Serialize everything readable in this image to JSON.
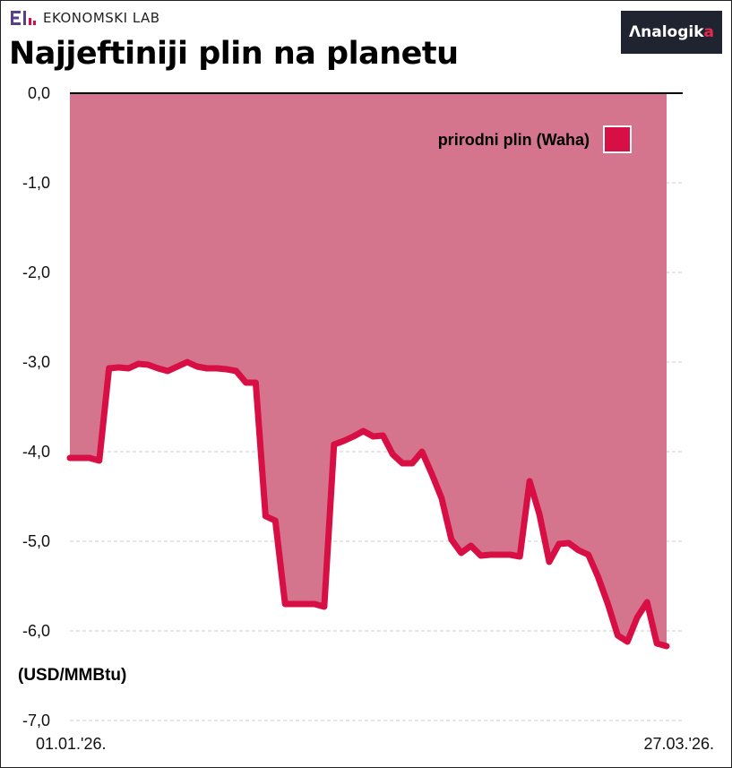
{
  "brand": {
    "name": "EKONOMSKI LAB"
  },
  "logo": {
    "prefix": "Ʌ",
    "main": "nalogik",
    "accent_letter": "a"
  },
  "title": "Najjeftiniji plin na planetu",
  "colors": {
    "line": "#d80f45",
    "area": "#d4748d",
    "gridline": "#cccccc",
    "legend_swatch": "#d80f45"
  },
  "chart_data": {
    "type": "line",
    "title": "Najjeftiniji plin na planetu",
    "ylabel": "(USD/MMBtu)",
    "xlabel": "",
    "ylim": [
      -7.0,
      0.0
    ],
    "yticks": [
      0.0,
      -1.0,
      -2.0,
      -3.0,
      -4.0,
      -5.0,
      -6.0,
      -7.0
    ],
    "ytick_labels": [
      "0,0",
      "-1,0",
      "-2,0",
      "-3,0",
      "-4,0",
      "-5,0",
      "-6,0",
      "-7,0"
    ],
    "x_labels": [
      "01.01.'26.",
      "27.03.'26."
    ],
    "grid": true,
    "legend_position": "top-right",
    "series": [
      {
        "name": "prirodni plin (Waha)",
        "color": "#d80f45",
        "fill": "area-from-zero",
        "values": [
          -4.07,
          -4.07,
          -4.07,
          -4.1,
          -3.07,
          -3.06,
          -3.07,
          -3.02,
          -3.03,
          -3.07,
          -3.1,
          -3.05,
          -3.0,
          -3.05,
          -3.07,
          -3.07,
          -3.08,
          -3.1,
          -3.23,
          -3.23,
          -4.72,
          -4.77,
          -5.7,
          -5.7,
          -5.7,
          -5.7,
          -5.73,
          -3.92,
          -3.88,
          -3.83,
          -3.77,
          -3.83,
          -3.82,
          -4.03,
          -4.13,
          -4.13,
          -4.0,
          -4.25,
          -4.52,
          -4.98,
          -5.13,
          -5.05,
          -5.16,
          -5.15,
          -5.15,
          -5.15,
          -5.17,
          -4.33,
          -4.7,
          -5.23,
          -5.03,
          -5.02,
          -5.1,
          -5.15,
          -5.4,
          -5.7,
          -6.05,
          -6.12,
          -5.85,
          -5.68,
          -6.14,
          -6.17
        ]
      }
    ]
  }
}
